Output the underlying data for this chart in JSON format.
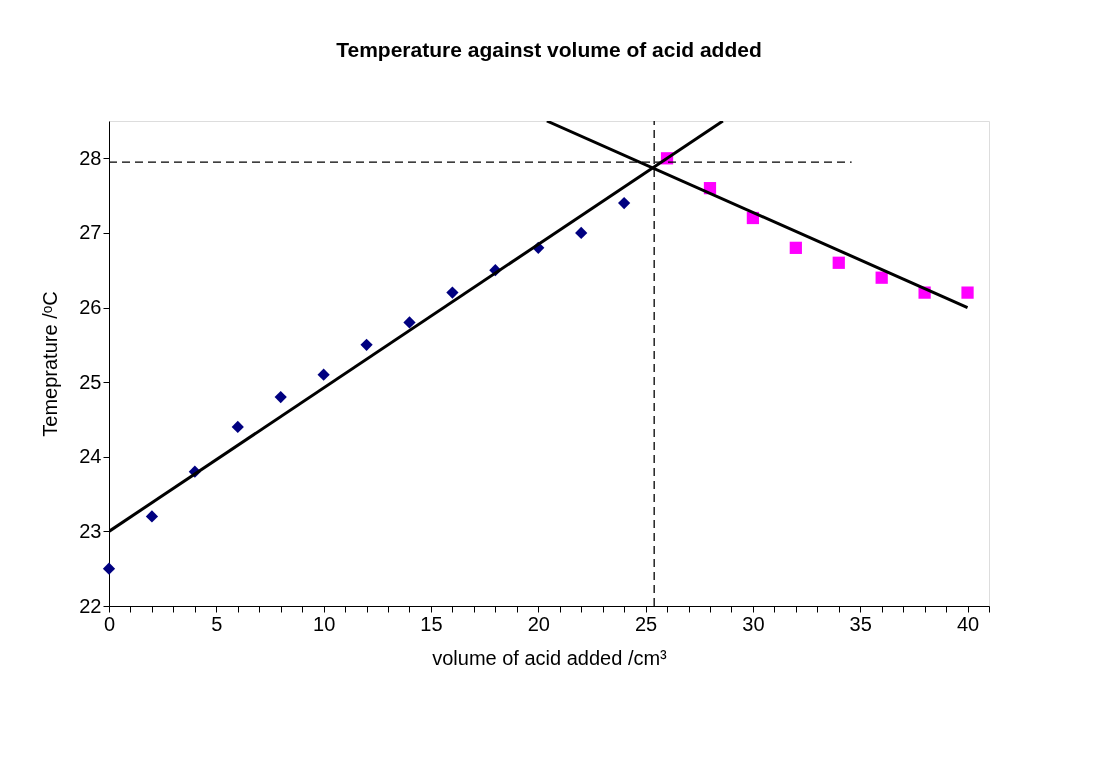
{
  "chart_data": {
    "type": "scatter",
    "title": "Temperature against volume of acid added",
    "xlabel": "volume of acid added /cm³",
    "ylabel": "Temeprature /ᵒC",
    "xlim": [
      0,
      41
    ],
    "xticks": [
      0,
      {
        "value": 1,
        "label": null
      },
      {
        "value": 2,
        "label": null
      },
      {
        "value": 3,
        "label": null
      },
      {
        "value": 4,
        "label": null
      },
      5,
      {
        "value": 6,
        "label": null
      },
      {
        "value": 7,
        "label": null
      },
      {
        "value": 8,
        "label": null
      },
      {
        "value": 9,
        "label": null
      },
      10,
      {
        "value": 11,
        "label": null
      },
      {
        "value": 12,
        "label": null
      },
      {
        "value": 13,
        "label": null
      },
      {
        "value": 14,
        "label": null
      },
      15,
      {
        "value": 16,
        "label": null
      },
      {
        "value": 17,
        "label": null
      },
      {
        "value": 18,
        "label": null
      },
      {
        "value": 19,
        "label": null
      },
      20,
      {
        "value": 21,
        "label": null
      },
      {
        "value": 22,
        "label": null
      },
      {
        "value": 23,
        "label": null
      },
      {
        "value": 24,
        "label": null
      },
      25,
      {
        "value": 26,
        "label": null
      },
      {
        "value": 27,
        "label": null
      },
      {
        "value": 28,
        "label": null
      },
      {
        "value": 29,
        "label": null
      },
      30,
      {
        "value": 31,
        "label": null
      },
      {
        "value": 32,
        "label": null
      },
      {
        "value": 33,
        "label": null
      },
      {
        "value": 34,
        "label": null
      },
      35,
      {
        "value": 36,
        "label": null
      },
      {
        "value": 37,
        "label": null
      },
      {
        "value": 38,
        "label": null
      },
      {
        "value": 39,
        "label": null
      },
      40,
      {
        "value": 41,
        "label": null
      }
    ],
    "ylim": [
      22,
      28.5
    ],
    "yticks": [
      22,
      23,
      24,
      25,
      26,
      27,
      28
    ],
    "series": [
      {
        "marker": "diamond",
        "color": "#000080",
        "x": [
          0,
          2,
          4,
          6,
          8,
          10,
          12,
          14,
          16,
          18,
          20,
          22,
          24
        ],
        "values": [
          22.5,
          23.2,
          23.8,
          24.4,
          24.8,
          25.1,
          25.5,
          25.8,
          26.2,
          26.5,
          26.8,
          27.0,
          27.4
        ]
      },
      {
        "marker": "square",
        "color": "#ff00ff",
        "x": [
          26,
          28,
          30,
          32,
          34,
          36,
          38,
          40
        ],
        "values": [
          28.0,
          27.6,
          27.2,
          26.8,
          26.6,
          26.4,
          26.2,
          26.2
        ]
      },
      {
        "type": "line",
        "line_style": "solid",
        "color": "#000000",
        "x": [
          0,
          28.6
        ],
        "values": [
          23.0,
          28.5
        ]
      },
      {
        "type": "line",
        "line_style": "solid",
        "color": "#000000",
        "x": [
          20.4,
          40
        ],
        "values": [
          28.5,
          26.0
        ]
      },
      {
        "type": "line",
        "line_style": "dashed",
        "color": "#000000",
        "x": [
          25.4,
          25.4
        ],
        "values": [
          22,
          28.5
        ]
      },
      {
        "type": "line",
        "line_style": "dashed",
        "color": "#000000",
        "x": [
          0,
          34.6
        ],
        "values": [
          27.95,
          27.95
        ]
      }
    ]
  }
}
